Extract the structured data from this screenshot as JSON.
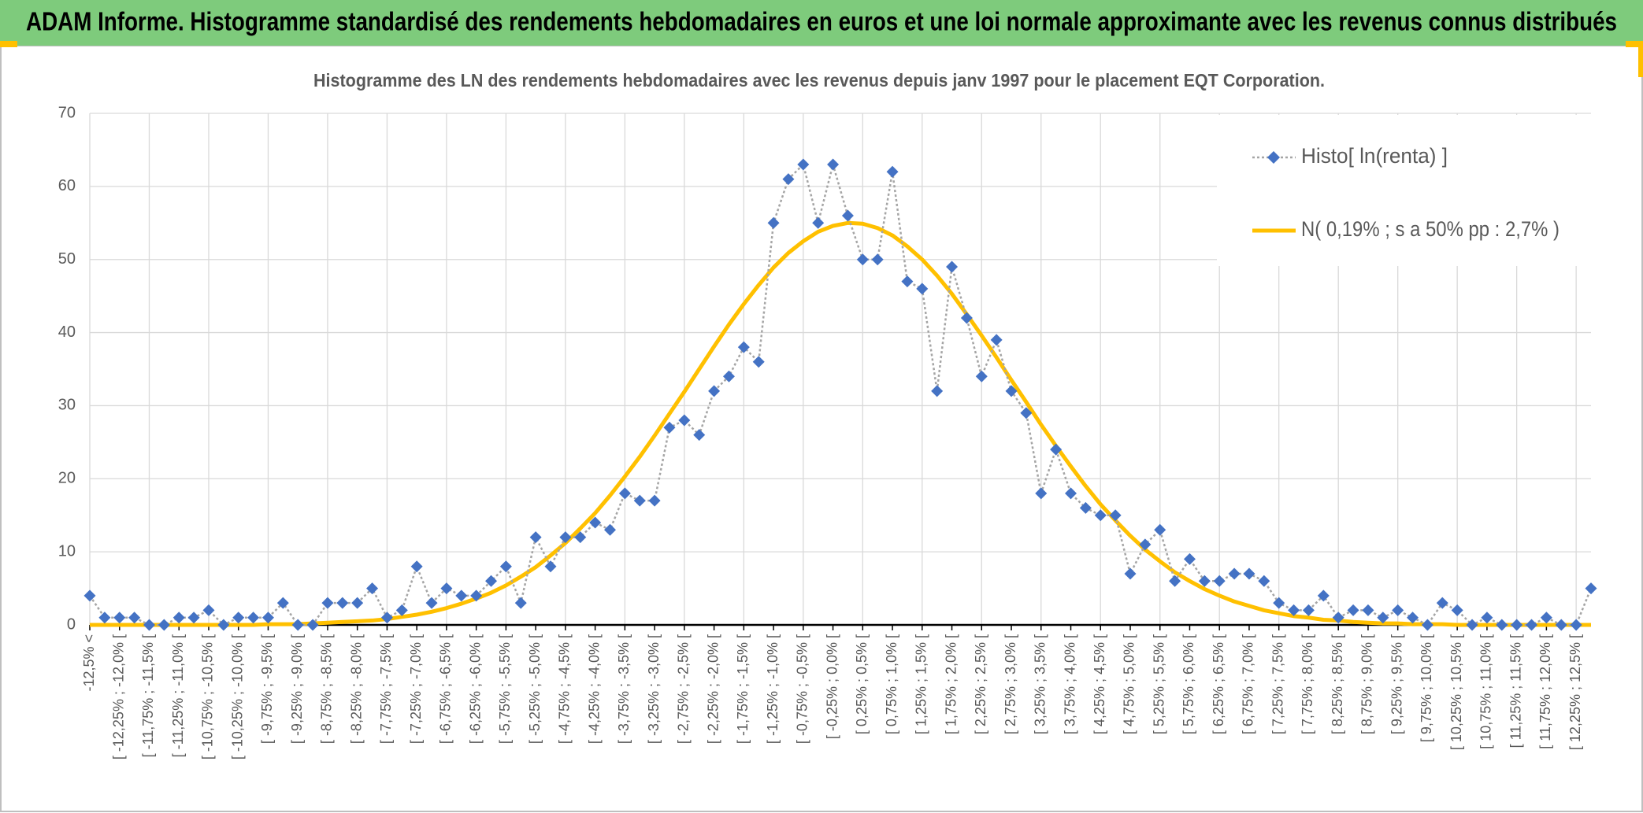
{
  "chart_data": {
    "type": "line",
    "title": "ADAM Informe. Histogramme standardisé des rendements hebdomadaires en euros et une loi normale approximante avec les revenus connus distribués",
    "subtitle": "Histogramme des LN des rendements hebdomadaires avec les revenus depuis janv 1997 pour le placement EQT Corporation.",
    "categories": [
      "-12,5% <",
      null,
      "[ -12,25% ; -12,0% [",
      null,
      "[ -11,75% ; -11,5% [",
      null,
      "[ -11,25% ; -11,0% [",
      null,
      "[ -10,75% ; -10,5% [",
      null,
      "[ -10,25% ; -10,0% [",
      null,
      "[ -9,75% ; -9,5% [",
      null,
      "[ -9,25% ; -9,0% [",
      null,
      "[ -8,75% ; -8,5% [",
      null,
      "[ -8,25% ; -8,0% [",
      null,
      "[ -7,75% ; -7,5% [",
      null,
      "[ -7,25% ; -7,0% [",
      null,
      "[ -6,75% ; -6,5% [",
      null,
      "[ -6,25% ; -6,0% [",
      null,
      "[ -5,75% ; -5,5% [",
      null,
      "[ -5,25% ; -5,0% [",
      null,
      "[ -4,75% ; -4,5% [",
      null,
      "[ -4,25% ; -4,0% [",
      null,
      "[ -3,75% ; -3,5% [",
      null,
      "[ -3,25% ; -3,0% [",
      null,
      "[ -2,75% ; -2,5% [",
      null,
      "[ -2,25% ; -2,0% [",
      null,
      "[ -1,75% ; -1,5% [",
      null,
      "[ -1,25% ; -1,0% [",
      null,
      "[ -0,75% ; -0,5% [",
      null,
      "[ -0,25% ; 0,0% [",
      null,
      "[ 0,25% ; 0,5% [",
      null,
      "[ 0,75% ; 1,0% [",
      null,
      "[ 1,25% ; 1,5% [",
      null,
      "[ 1,75% ; 2,0% [",
      null,
      "[ 2,25% ; 2,5% [",
      null,
      "[ 2,75% ; 3,0% [",
      null,
      "[ 3,25% ; 3,5% [",
      null,
      "[ 3,75% ; 4,0% [",
      null,
      "[ 4,25% ; 4,5% [",
      null,
      "[ 4,75% ; 5,0% [",
      null,
      "[ 5,25% ; 5,5% [",
      null,
      "[ 5,75% ; 6,0% [",
      null,
      "[ 6,25% ; 6,5% [",
      null,
      "[ 6,75% ; 7,0% [",
      null,
      "[ 7,25% ; 7,5% [",
      null,
      "[ 7,75% ; 8,0% [",
      null,
      "[ 8,25% ; 8,5% [",
      null,
      "[ 8,75% ; 9,0% [",
      null,
      "[ 9,25% ; 9,5% [",
      null,
      "[ 9,75% ; 10,0% [",
      null,
      "[ 10,25% ; 10,5% [",
      null,
      "[ 10,75% ; 11,0% [",
      null,
      "[ 11,25% ; 11,5% [",
      null,
      "[ 11,75% ; 12,0% [",
      null,
      "[ 12,25% ; 12,5% [",
      null
    ],
    "series": [
      {
        "name": "Histo[ ln(renta) ]",
        "color": "#4472c4",
        "line_color": "#a5a5a5",
        "marker": "diamond",
        "dash": "dotted",
        "values": [
          4,
          1,
          1,
          1,
          0,
          0,
          1,
          1,
          2,
          0,
          1,
          1,
          1,
          3,
          0,
          0,
          3,
          3,
          3,
          5,
          1,
          2,
          8,
          3,
          5,
          4,
          4,
          6,
          8,
          3,
          12,
          8,
          12,
          12,
          14,
          13,
          18,
          17,
          17,
          27,
          28,
          26,
          32,
          34,
          38,
          36,
          55,
          61,
          63,
          55,
          63,
          56,
          50,
          50,
          62,
          47,
          46,
          32,
          49,
          42,
          34,
          39,
          32,
          29,
          18,
          24,
          18,
          16,
          15,
          15,
          7,
          11,
          13,
          6,
          9,
          6,
          6,
          7,
          7,
          6,
          3,
          2,
          2,
          4,
          1,
          2,
          2,
          1,
          2,
          1,
          0,
          3,
          2,
          0,
          1,
          0,
          0,
          0,
          1,
          0,
          0,
          5
        ]
      },
      {
        "name": "N( 0,19% ; s a 50% pp : 2,7% )",
        "color": "#ffc000",
        "values": [
          0,
          0,
          0,
          0,
          0,
          0,
          0,
          0,
          0,
          0,
          0,
          0,
          0.1,
          0.1,
          0.1,
          0.2,
          0.3,
          0.4,
          0.5,
          0.6,
          0.8,
          1.1,
          1.4,
          1.8,
          2.3,
          2.9,
          3.6,
          4.4,
          5.4,
          6.6,
          7.9,
          9.5,
          11.2,
          13.2,
          15.3,
          17.7,
          20.3,
          23.0,
          25.9,
          28.9,
          31.9,
          35.0,
          38.1,
          41.1,
          43.9,
          46.5,
          48.9,
          50.9,
          52.5,
          53.8,
          54.6,
          55.0,
          54.9,
          54.3,
          53.3,
          51.8,
          50.0,
          47.8,
          45.3,
          42.5,
          39.6,
          36.6,
          33.5,
          30.5,
          27.4,
          24.5,
          21.7,
          19.0,
          16.5,
          14.3,
          12.2,
          10.3,
          8.7,
          7.2,
          6.0,
          4.9,
          4.0,
          3.2,
          2.6,
          2.0,
          1.6,
          1.2,
          1.0,
          0.7,
          0.6,
          0.4,
          0.3,
          0.2,
          0.2,
          0.1,
          0.1,
          0.1,
          0,
          0,
          0,
          0,
          0,
          0,
          0,
          0,
          0,
          0
        ]
      }
    ],
    "ylim": [
      0,
      70
    ],
    "yticks": [
      0,
      10,
      20,
      30,
      40,
      50,
      60,
      70
    ],
    "grid": true,
    "legend": "top-right"
  }
}
